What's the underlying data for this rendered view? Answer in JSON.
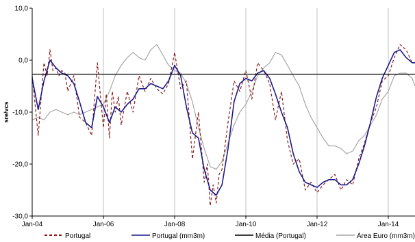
{
  "chart_data": {
    "type": "line",
    "ylabel": "sre/vcs",
    "ylim": [
      -30,
      10
    ],
    "yticks": [
      10,
      0,
      -10,
      -20,
      -30
    ],
    "ytick_labels": [
      "10,0",
      "0,0",
      "-10,0",
      "-20,0",
      "-30,0"
    ],
    "xlim": [
      2004.0,
      2014.75
    ],
    "xticks": [
      2004,
      2006,
      2008,
      2010,
      2012,
      2014
    ],
    "xtick_labels": [
      "Jan-04",
      "Jan-06",
      "Jan-08",
      "Jan-10",
      "Jan-12",
      "Jan-14"
    ],
    "grid": "vertical",
    "legend_position": "bottom",
    "reference_line": {
      "name": "Média (Portugal)",
      "y": -2.7,
      "color": "#000000"
    },
    "series": [
      {
        "name": "Portugal",
        "color": "#8b1a1a",
        "dash": "4,3",
        "x": [
          2004.0,
          2004.17,
          2004.33,
          2004.42,
          2004.5,
          2004.58,
          2004.67,
          2004.75,
          2004.83,
          2004.92,
          2005.0,
          2005.17,
          2005.33,
          2005.5,
          2005.67,
          2005.83,
          2005.92,
          2006.0,
          2006.08,
          2006.17,
          2006.25,
          2006.33,
          2006.42,
          2006.5,
          2006.67,
          2006.83,
          2007.0,
          2007.17,
          2007.33,
          2007.5,
          2007.67,
          2007.83,
          2008.0,
          2008.17,
          2008.33,
          2008.5,
          2008.67,
          2008.83,
          2008.92,
          2009.0,
          2009.08,
          2009.17,
          2009.25,
          2009.33,
          2009.5,
          2009.67,
          2009.83,
          2010.0,
          2010.17,
          2010.33,
          2010.5,
          2010.67,
          2010.83,
          2011.0,
          2011.17,
          2011.33,
          2011.5,
          2011.67,
          2011.83,
          2012.0,
          2012.17,
          2012.33,
          2012.5,
          2012.67,
          2012.83,
          2013.0,
          2013.17,
          2013.33,
          2013.5,
          2013.67,
          2013.83,
          2014.0,
          2014.17,
          2014.33,
          2014.5,
          2014.67,
          2014.75
        ],
        "values": [
          -3.0,
          -14.5,
          -0.5,
          -3.0,
          2.0,
          -2.0,
          -1.5,
          -3.0,
          -2.0,
          -2.5,
          -6.0,
          -3.0,
          -11.0,
          -12.0,
          -14.5,
          -0.5,
          -7.0,
          -13.0,
          -6.5,
          -15.0,
          -6.0,
          -10.0,
          -7.0,
          -12.5,
          -6.0,
          -10.0,
          -3.0,
          -6.0,
          -3.5,
          -5.5,
          -6.5,
          -4.5,
          1.5,
          -5.5,
          -4.0,
          -19.0,
          -10.0,
          -23.5,
          -20.0,
          -28.0,
          -24.0,
          -27.5,
          -22.0,
          -21.0,
          -12.0,
          -4.0,
          -6.0,
          -2.0,
          -7.5,
          -0.5,
          -2.0,
          -4.5,
          -11.5,
          -6.0,
          -15.5,
          -20.0,
          -19.0,
          -25.0,
          -23.5,
          -25.5,
          -24.0,
          -23.0,
          -22.0,
          -25.0,
          -23.0,
          -24.0,
          -19.0,
          -16.0,
          -12.0,
          -9.0,
          -4.0,
          -3.0,
          0.5,
          3.0,
          2.0,
          -0.5,
          -0.5
        ]
      },
      {
        "name": "Portugal (mm3m)",
        "color": "#1a1a8c",
        "dash": "",
        "x": [
          2004.0,
          2004.17,
          2004.33,
          2004.5,
          2004.67,
          2004.83,
          2005.0,
          2005.17,
          2005.33,
          2005.5,
          2005.67,
          2005.83,
          2006.0,
          2006.17,
          2006.33,
          2006.5,
          2006.67,
          2006.83,
          2007.0,
          2007.17,
          2007.33,
          2007.5,
          2007.67,
          2007.83,
          2008.0,
          2008.17,
          2008.33,
          2008.5,
          2008.67,
          2008.83,
          2009.0,
          2009.17,
          2009.33,
          2009.5,
          2009.67,
          2009.83,
          2010.0,
          2010.17,
          2010.33,
          2010.5,
          2010.67,
          2010.83,
          2011.0,
          2011.17,
          2011.33,
          2011.5,
          2011.67,
          2011.83,
          2012.0,
          2012.17,
          2012.33,
          2012.5,
          2012.67,
          2012.83,
          2013.0,
          2013.17,
          2013.33,
          2013.5,
          2013.67,
          2013.83,
          2014.0,
          2014.17,
          2014.33,
          2014.5,
          2014.67,
          2014.75
        ],
        "values": [
          -3.5,
          -9.5,
          -4.0,
          0.0,
          -1.5,
          -2.5,
          -3.0,
          -4.5,
          -8.0,
          -12.0,
          -13.0,
          -7.0,
          -9.0,
          -12.0,
          -9.0,
          -10.0,
          -8.5,
          -7.5,
          -5.5,
          -5.5,
          -4.5,
          -5.0,
          -5.5,
          -4.0,
          -1.0,
          -3.0,
          -9.0,
          -14.0,
          -15.0,
          -21.0,
          -25.0,
          -26.0,
          -24.0,
          -17.0,
          -8.0,
          -4.5,
          -3.5,
          -4.0,
          -2.5,
          -2.0,
          -3.5,
          -6.5,
          -10.0,
          -13.0,
          -18.0,
          -21.5,
          -23.5,
          -24.0,
          -24.5,
          -23.5,
          -23.0,
          -23.0,
          -24.0,
          -24.0,
          -23.0,
          -20.0,
          -16.5,
          -12.0,
          -7.0,
          -3.5,
          -1.0,
          1.5,
          2.0,
          0.5,
          -0.5,
          -0.5
        ]
      },
      {
        "name": "Área Euro (mm3m)",
        "color": "#a6a6a6",
        "dash": "",
        "x": [
          2004.0,
          2004.17,
          2004.33,
          2004.5,
          2004.67,
          2004.83,
          2005.0,
          2005.17,
          2005.33,
          2005.5,
          2005.67,
          2005.83,
          2006.0,
          2006.17,
          2006.33,
          2006.5,
          2006.67,
          2006.83,
          2007.0,
          2007.17,
          2007.33,
          2007.5,
          2007.67,
          2007.83,
          2008.0,
          2008.17,
          2008.33,
          2008.5,
          2008.67,
          2008.83,
          2009.0,
          2009.17,
          2009.33,
          2009.5,
          2009.67,
          2009.83,
          2010.0,
          2010.17,
          2010.33,
          2010.5,
          2010.67,
          2010.83,
          2011.0,
          2011.17,
          2011.33,
          2011.5,
          2011.67,
          2011.83,
          2012.0,
          2012.17,
          2012.33,
          2012.5,
          2012.67,
          2012.83,
          2013.0,
          2013.17,
          2013.33,
          2013.5,
          2013.67,
          2013.83,
          2014.0,
          2014.17,
          2014.33,
          2014.5,
          2014.67,
          2014.75
        ],
        "values": [
          -11.5,
          -11.0,
          -11.5,
          -10.0,
          -9.5,
          -10.0,
          -10.5,
          -10.0,
          -10.5,
          -10.0,
          -9.5,
          -9.0,
          -8.5,
          -6.0,
          -3.0,
          -1.0,
          0.5,
          1.5,
          0.5,
          0.0,
          2.0,
          3.0,
          1.0,
          -1.0,
          -2.0,
          -2.5,
          -4.5,
          -8.0,
          -13.0,
          -17.0,
          -20.5,
          -21.0,
          -19.5,
          -16.0,
          -12.5,
          -10.0,
          -8.5,
          -6.0,
          -3.0,
          -1.5,
          -0.5,
          1.5,
          1.0,
          -1.0,
          -3.0,
          -5.0,
          -8.5,
          -11.0,
          -13.0,
          -15.0,
          -16.5,
          -16.5,
          -17.0,
          -18.0,
          -17.5,
          -15.5,
          -14.5,
          -12.5,
          -10.5,
          -7.5,
          -6.0,
          -3.0,
          -2.5,
          -2.5,
          -3.5,
          -5.0
        ]
      }
    ]
  }
}
